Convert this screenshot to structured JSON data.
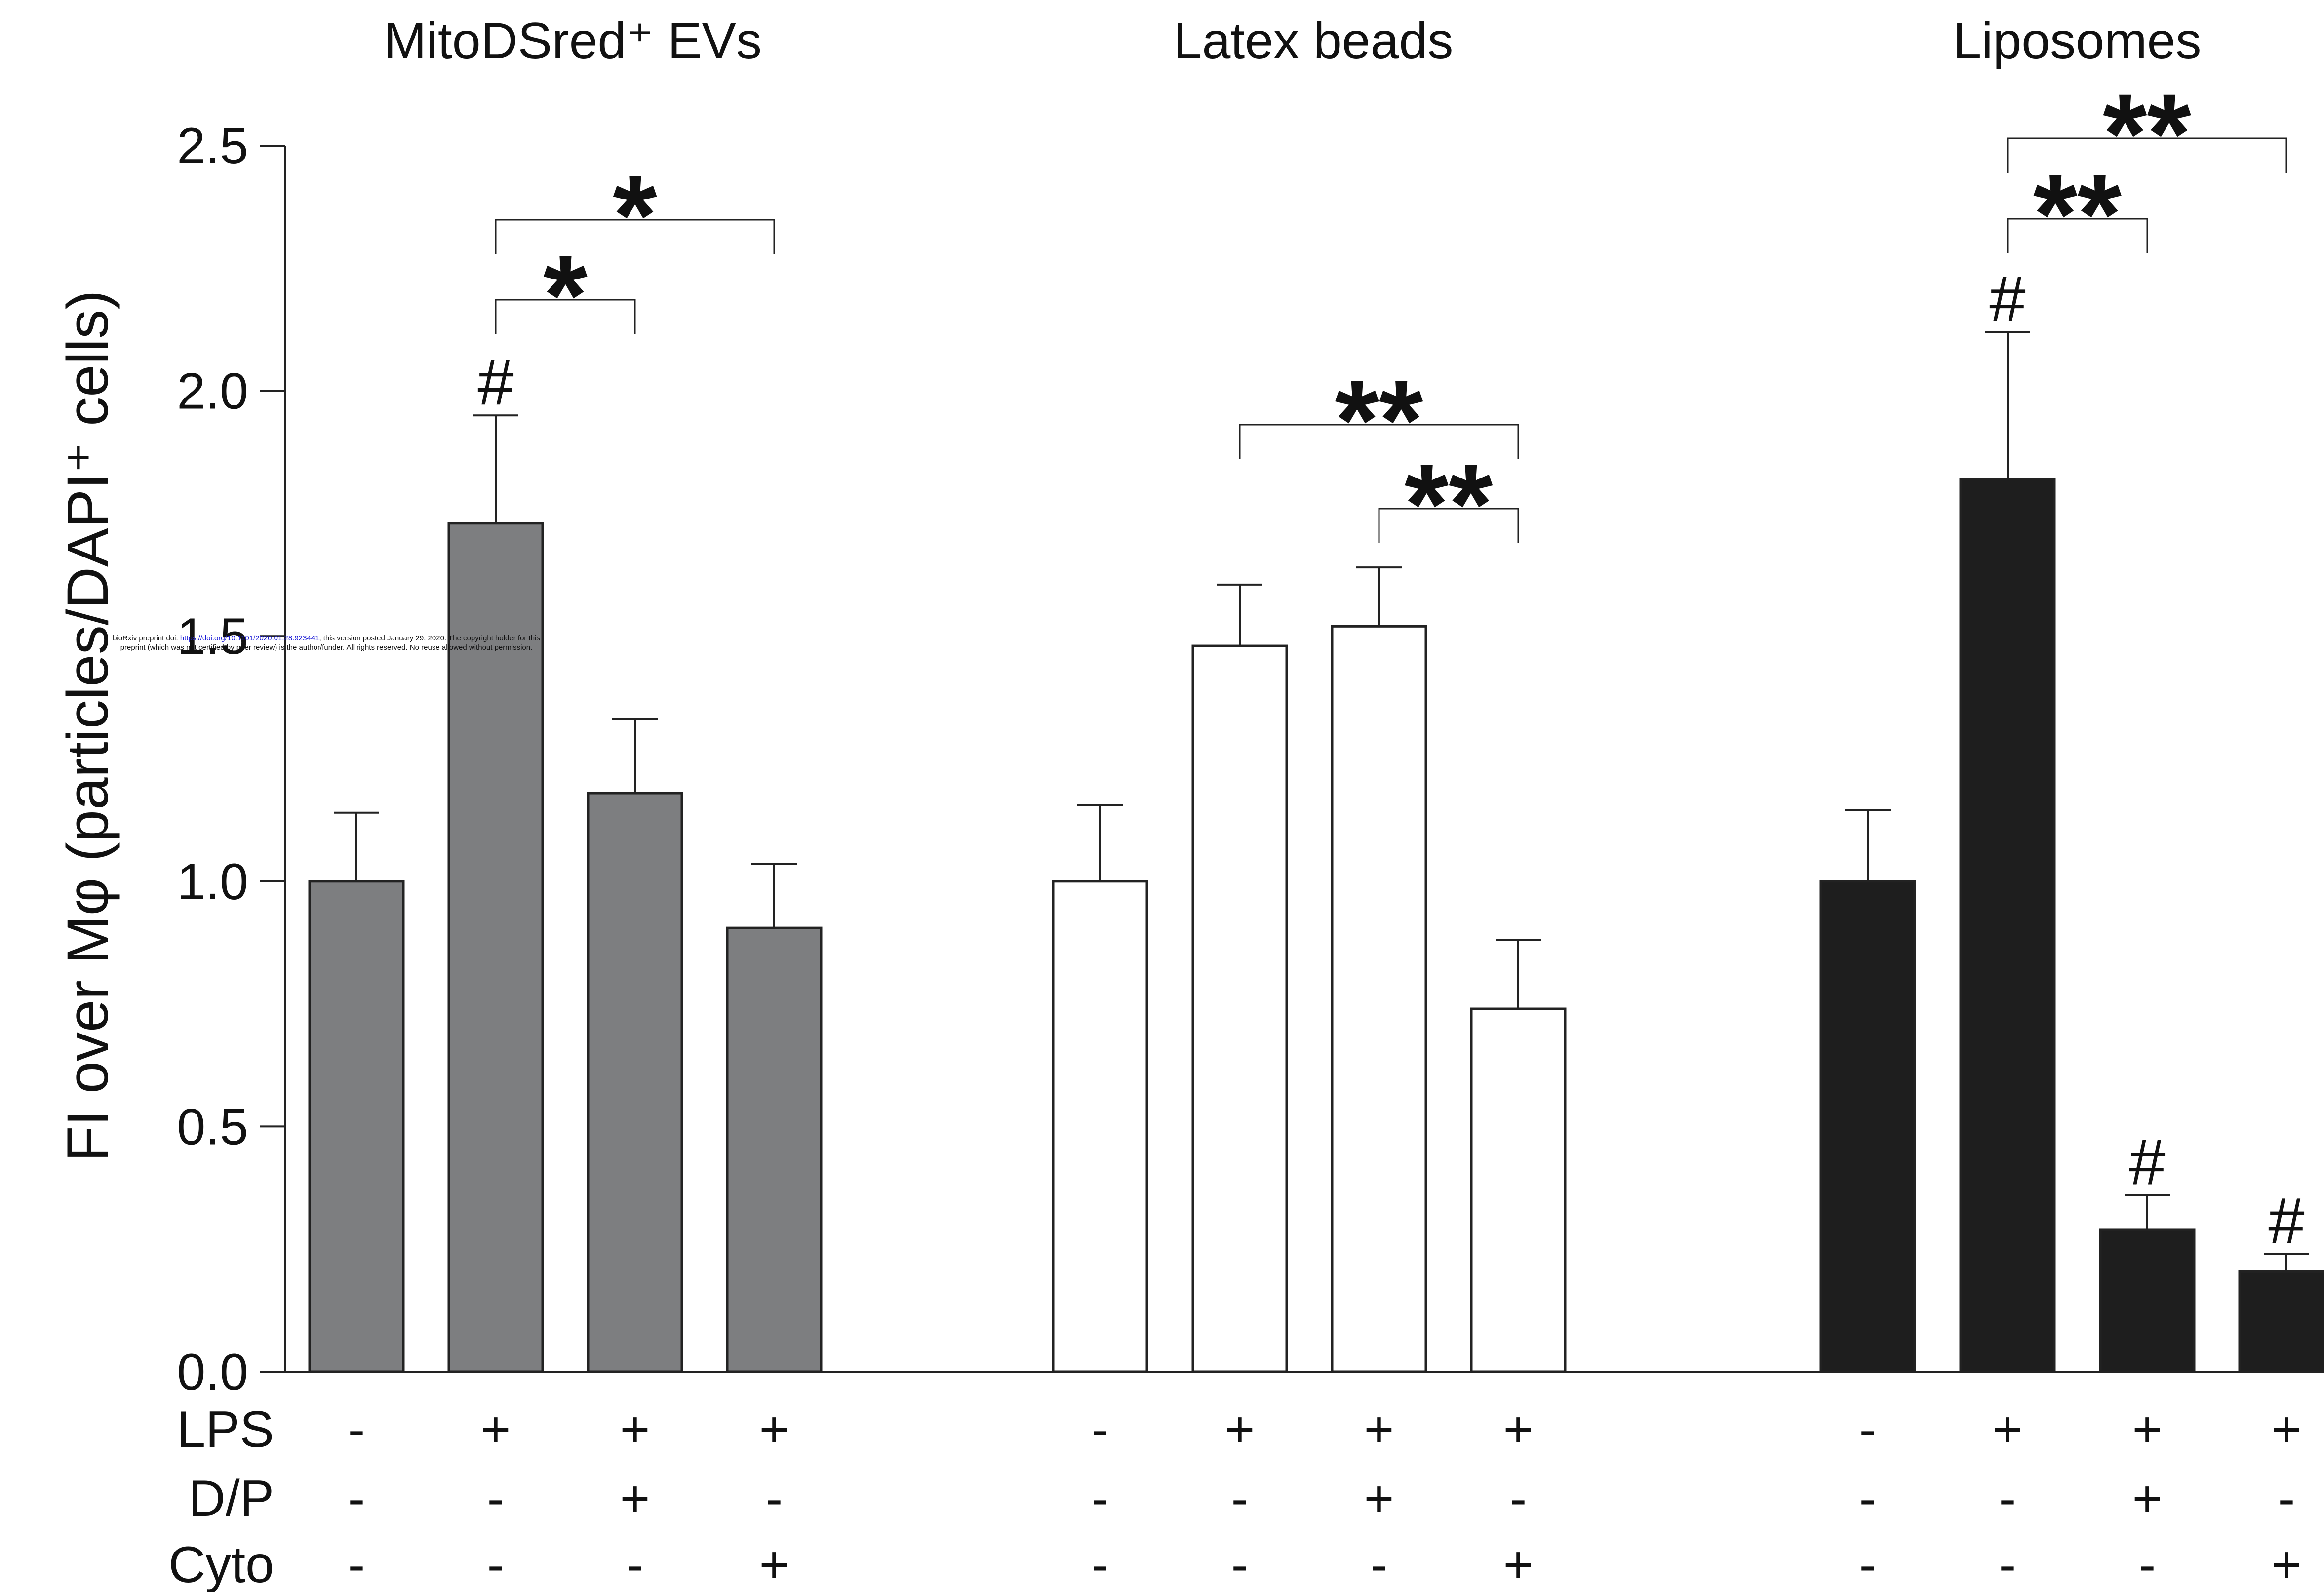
{
  "chart_data": {
    "type": "bar",
    "ylabel": "FI over Mφ (particles/DAPI⁺ cells)",
    "ylim": [
      0,
      2.5
    ],
    "yticks": [
      "0.0",
      "0.5",
      "1.0",
      "1.5",
      "2.0",
      "2.5"
    ],
    "condition_labels": [
      "LPS",
      "D/P",
      "Cyto"
    ],
    "groups": [
      {
        "title": "MitoDSred⁺ EVs",
        "fill": "#7d7e80",
        "bars": [
          {
            "value": 1.0,
            "error": 0.14,
            "mark": "",
            "conditions": [
              "-",
              "-",
              "-"
            ]
          },
          {
            "value": 1.73,
            "error": 0.22,
            "mark": "#",
            "conditions": [
              "+",
              "-",
              "-"
            ]
          },
          {
            "value": 1.18,
            "error": 0.15,
            "mark": "",
            "conditions": [
              "+",
              "+",
              "-"
            ]
          },
          {
            "value": 0.905,
            "error": 0.13,
            "mark": "",
            "conditions": [
              "+",
              "-",
              "+"
            ]
          }
        ],
        "brackets": [
          {
            "from": 1,
            "to": 3,
            "label": "*"
          },
          {
            "from": 1,
            "to": 2,
            "label": "*"
          }
        ]
      },
      {
        "title": "Latex beads",
        "fill": "#ffffff",
        "bars": [
          {
            "value": 1.0,
            "error": 0.155,
            "mark": "",
            "conditions": [
              "-",
              "-",
              "-"
            ]
          },
          {
            "value": 1.48,
            "error": 0.125,
            "mark": "",
            "conditions": [
              "+",
              "-",
              "-"
            ]
          },
          {
            "value": 1.52,
            "error": 0.12,
            "mark": "",
            "conditions": [
              "+",
              "+",
              "-"
            ]
          },
          {
            "value": 0.74,
            "error": 0.14,
            "mark": "",
            "conditions": [
              "+",
              "-",
              "+"
            ]
          }
        ],
        "brackets": [
          {
            "from": 1,
            "to": 3,
            "label": "**"
          },
          {
            "from": 2,
            "to": 3,
            "label": "**"
          }
        ]
      },
      {
        "title": "Liposomes",
        "fill": "#1e1e1e",
        "bars": [
          {
            "value": 1.0,
            "error": 0.145,
            "mark": "",
            "conditions": [
              "-",
              "-",
              "-"
            ]
          },
          {
            "value": 1.82,
            "error": 0.3,
            "mark": "#",
            "conditions": [
              "+",
              "-",
              "-"
            ]
          },
          {
            "value": 0.29,
            "error": 0.07,
            "mark": "#",
            "conditions": [
              "+",
              "+",
              "-"
            ]
          },
          {
            "value": 0.205,
            "error": 0.035,
            "mark": "#",
            "conditions": [
              "+",
              "-",
              "+"
            ]
          }
        ],
        "brackets": [
          {
            "from": 1,
            "to": 3,
            "label": "**"
          },
          {
            "from": 1,
            "to": 2,
            "label": "**"
          }
        ]
      }
    ]
  },
  "overlay_notice": {
    "prefix": "bioRxiv preprint doi: ",
    "doi": "https://doi.org/10.1101/2020.01.28.923441",
    "suffix": "; this version posted January 29, 2020. The copyright holder for this",
    "line2": "preprint (which was not certified by peer review) is the author/funder. All rights reserved. No reuse allowed without permission."
  }
}
